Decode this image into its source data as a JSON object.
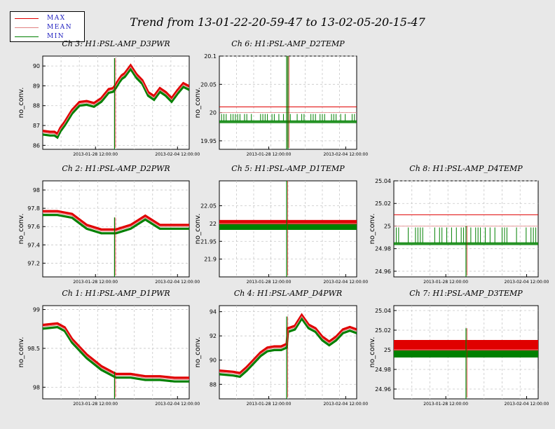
{
  "title": "Trend from 13-01-22-20-59-47 to 13-02-05-20-15-47",
  "legend": [
    {
      "label": "MAX",
      "color": "#e00000"
    },
    {
      "label": "MEAN",
      "color": "#e08080"
    },
    {
      "label": "MIN",
      "color": "#008000"
    }
  ],
  "colors": {
    "max": "#e00000",
    "mean": "#e08080",
    "min": "#008000",
    "background": "#e8e8e8"
  },
  "chart_data": [
    {
      "type": "line",
      "title": "Ch 3: H1:PSL-AMP_D3PWR",
      "ylabel": "no_conv.",
      "ylim": [
        85.8,
        90.5
      ],
      "yticks": [
        "86",
        "87",
        "88",
        "89",
        "90"
      ],
      "xticks": [
        "2013-01-28 12:00:00",
        "2013-02-04 12:00:00"
      ],
      "x": [
        0,
        0.05,
        0.08,
        0.1,
        0.12,
        0.15,
        0.2,
        0.25,
        0.3,
        0.35,
        0.4,
        0.45,
        0.48,
        0.5,
        0.52,
        0.54,
        0.56,
        0.6,
        0.64,
        0.68,
        0.72,
        0.76,
        0.8,
        0.84,
        0.88,
        0.92,
        0.96,
        1.0
      ],
      "series": [
        {
          "values": [
            86.65,
            86.6,
            86.6,
            86.5,
            86.8,
            87.1,
            87.7,
            88.1,
            88.15,
            88.05,
            88.3,
            88.75,
            88.8,
            89.0,
            89.25,
            89.45,
            89.55,
            89.95,
            89.5,
            89.2,
            88.6,
            88.4,
            88.8,
            88.6,
            88.3,
            88.7,
            89.05,
            88.9
          ]
        }
      ],
      "spikes": [
        {
          "x": 0.49,
          "ylow": 85.8,
          "yhigh": 90.4
        }
      ]
    },
    {
      "type": "line",
      "title": "Ch 6: H1:PSL-AMP_D2TEMP",
      "ylabel": "no_conv.",
      "ylim": [
        19.935,
        20.1
      ],
      "yticks": [
        "19.95",
        "20",
        "20.05",
        "20.1"
      ],
      "xticks": [
        "2013-01-28 12:00:00",
        "2013-02-04 12:00:00"
      ],
      "bands": [
        {
          "max": 20.01,
          "mean": 20.0,
          "min": 19.985
        }
      ],
      "spikes": [
        {
          "x": 0.49,
          "ylow": 19.935,
          "yhigh": 20.1
        },
        {
          "x": 0.5,
          "ylow": 19.935,
          "yhigh": 20.1
        }
      ]
    },
    {
      "type": "line",
      "title": "Ch 2: H1:PSL-AMP_D2PWR",
      "ylabel": "no_conv.",
      "ylim": [
        97.05,
        98.1
      ],
      "yticks": [
        "97.2",
        "97.4",
        "97.6",
        "97.8",
        "98"
      ],
      "xticks": [
        "2013-01-28 12:00:00",
        "2013-02-04 12:00:00"
      ],
      "x": [
        0,
        0.1,
        0.2,
        0.3,
        0.4,
        0.5,
        0.6,
        0.7,
        0.8,
        0.9,
        1.0
      ],
      "series": [
        {
          "values": [
            97.75,
            97.75,
            97.72,
            97.6,
            97.55,
            97.55,
            97.6,
            97.7,
            97.6,
            97.6,
            97.6
          ]
        }
      ],
      "spikes": [
        {
          "x": 0.49,
          "ylow": 97.05,
          "yhigh": 97.7
        }
      ]
    },
    {
      "type": "line",
      "title": "Ch 5: H1:PSL-AMP_D1TEMP",
      "ylabel": "no_conv.",
      "ylim": [
        21.85,
        22.12
      ],
      "yticks": [
        "21.9",
        "21.95",
        "22",
        "22.05"
      ],
      "xticks": [
        "2013-01-28 12:00:00",
        "2013-02-04 12:00:00"
      ],
      "bands": [
        {
          "max": 22.01,
          "mean": 22.0,
          "min": 21.99
        }
      ],
      "spikes": [
        {
          "x": 0.49,
          "ylow": 21.85,
          "yhigh": 22.12
        }
      ]
    },
    {
      "type": "line",
      "title": "Ch 8: H1:PSL-AMP_D4TEMP",
      "ylabel": "no_conv.",
      "ylim": [
        24.955,
        25.04
      ],
      "yticks": [
        "24.96",
        "24.98",
        "25",
        "25.02",
        "25.04"
      ],
      "xticks": [
        "2013-01-28 12:00:00",
        "2013-02-04 12:00:00"
      ],
      "bands": [
        {
          "max": 25.01,
          "mean": 25.0,
          "min": 24.985
        }
      ],
      "spikes": [
        {
          "x": 0.5,
          "ylow": 24.955,
          "yhigh": 25.0
        }
      ]
    },
    {
      "type": "line",
      "title": "Ch 1: H1:PSL-AMP_D1PWR",
      "ylabel": "no_conv.",
      "ylim": [
        97.85,
        99.05
      ],
      "yticks": [
        "98",
        "98.5",
        "99"
      ],
      "xticks": [
        "2013-01-28 12:00:00",
        "2013-02-04 12:00:00"
      ],
      "x": [
        0,
        0.1,
        0.15,
        0.2,
        0.3,
        0.4,
        0.5,
        0.6,
        0.7,
        0.8,
        0.9,
        1.0
      ],
      "series": [
        {
          "values": [
            98.78,
            98.8,
            98.75,
            98.6,
            98.4,
            98.25,
            98.15,
            98.15,
            98.12,
            98.12,
            98.1,
            98.1
          ]
        }
      ],
      "spikes": [
        {
          "x": 0.49,
          "ylow": 97.85,
          "yhigh": 98.2
        }
      ]
    },
    {
      "type": "line",
      "title": "Ch 4: H1:PSL-AMP_D4PWR",
      "ylabel": "no_conv.",
      "ylim": [
        86.8,
        94.5
      ],
      "yticks": [
        "88",
        "90",
        "92",
        "94"
      ],
      "xticks": [
        "2013-01-28 12:00:00",
        "2013-02-04 12:00:00"
      ],
      "x": [
        0,
        0.1,
        0.15,
        0.2,
        0.25,
        0.3,
        0.35,
        0.4,
        0.45,
        0.49,
        0.5,
        0.55,
        0.6,
        0.65,
        0.7,
        0.75,
        0.8,
        0.85,
        0.9,
        0.95,
        1.0
      ],
      "series": [
        {
          "values": [
            89.0,
            88.9,
            88.8,
            89.3,
            89.9,
            90.5,
            90.9,
            91.0,
            91.0,
            91.2,
            92.5,
            92.7,
            93.6,
            92.8,
            92.5,
            91.8,
            91.4,
            91.8,
            92.4,
            92.6,
            92.4
          ]
        }
      ],
      "spikes": [
        {
          "x": 0.49,
          "ylow": 86.8,
          "yhigh": 93.6
        }
      ]
    },
    {
      "type": "line",
      "title": "Ch 7: H1:PSL-AMP_D3TEMP",
      "ylabel": "no_conv.",
      "ylim": [
        24.95,
        25.045
      ],
      "yticks": [
        "24.96",
        "24.98",
        "25",
        "25.02",
        "25.04"
      ],
      "xticks": [
        "2013-01-28 12:00:00",
        "2013-02-04 12:00:00"
      ],
      "bands": [
        {
          "max": 25.01,
          "mean": 25.0,
          "min": 24.995
        }
      ],
      "spikes": [
        {
          "x": 0.5,
          "ylow": 24.95,
          "yhigh": 25.022
        }
      ]
    }
  ]
}
